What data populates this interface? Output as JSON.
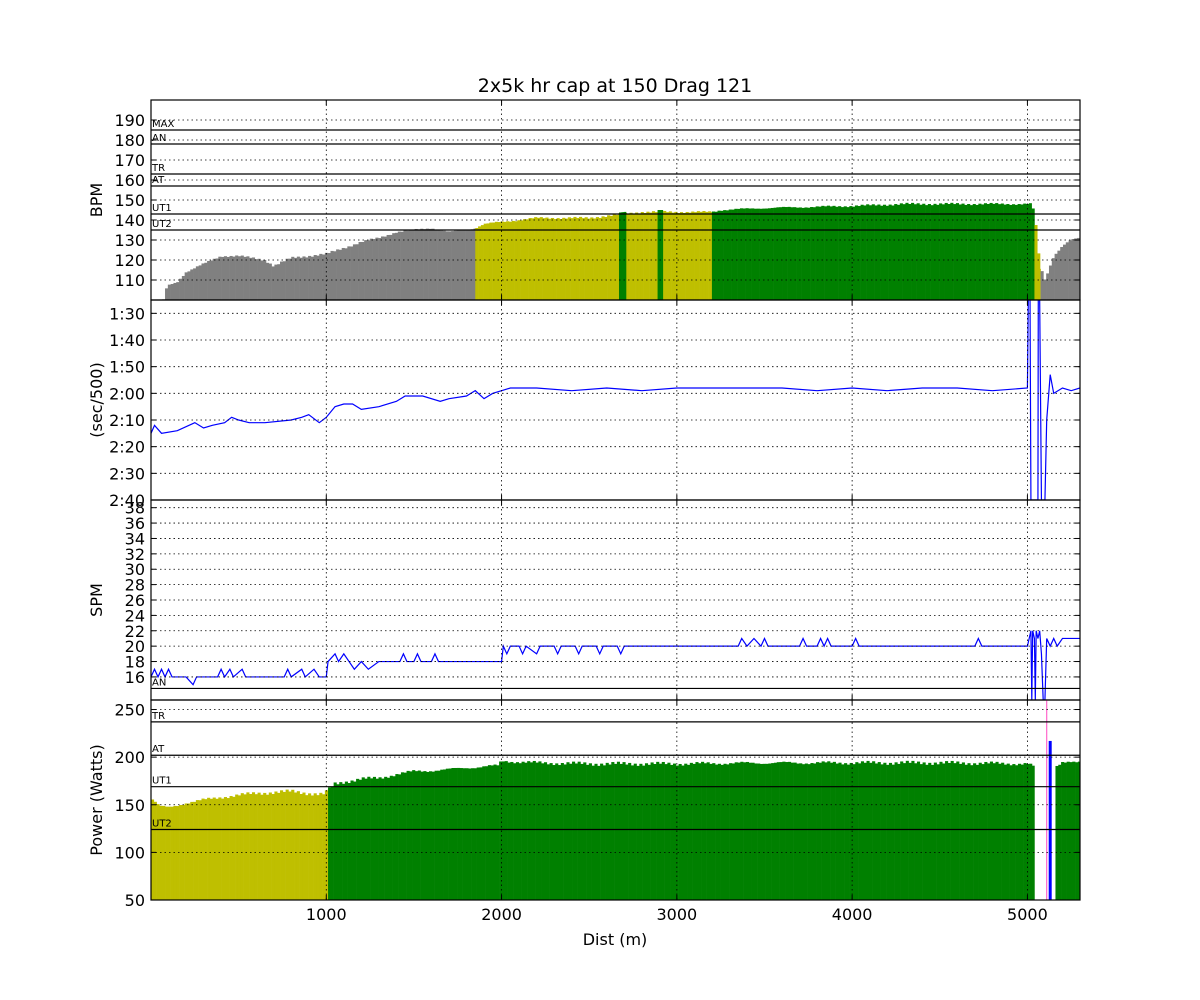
{
  "chart_data": {
    "title": "2x5k hr cap at 150 Drag 121",
    "xlabel": "Dist (m)",
    "xlim": [
      0,
      5300
    ],
    "xticks": [
      1000,
      2000,
      3000,
      4000,
      5000
    ],
    "colors": {
      "gray": "#808080",
      "yellow": "#bfbf00",
      "green": "#008000",
      "line": "#0000ff",
      "pink": "#ff66cc"
    },
    "panels": [
      {
        "id": "hr",
        "type": "bar",
        "ylabel": "BPM",
        "ylim": [
          100,
          200
        ],
        "yticks": [
          110,
          120,
          130,
          140,
          150,
          160,
          170,
          180,
          190
        ],
        "zones": [
          {
            "label": "MAX",
            "y": 185
          },
          {
            "label": "AN",
            "y": 178
          },
          {
            "label": "TR",
            "y": 163
          },
          {
            "label": "AT",
            "y": 157
          },
          {
            "label": "UT1",
            "y": 143
          },
          {
            "label": "UT2",
            "y": 135
          }
        ],
        "keypoints": [
          [
            0,
            100
          ],
          [
            80,
            100
          ],
          [
            90,
            107
          ],
          [
            150,
            109
          ],
          [
            200,
            114
          ],
          [
            300,
            118
          ],
          [
            400,
            122
          ],
          [
            500,
            122
          ],
          [
            650,
            120
          ],
          [
            700,
            117
          ],
          [
            800,
            121
          ],
          [
            900,
            122
          ],
          [
            1000,
            123
          ],
          [
            1100,
            126
          ],
          [
            1200,
            129
          ],
          [
            1300,
            131
          ],
          [
            1400,
            134
          ],
          [
            1500,
            135
          ],
          [
            1600,
            136
          ],
          [
            1700,
            134
          ],
          [
            1800,
            135
          ],
          [
            1850,
            136
          ],
          [
            1900,
            138
          ],
          [
            2000,
            139
          ],
          [
            2100,
            140
          ],
          [
            2200,
            141
          ],
          [
            2500,
            141
          ],
          [
            2800,
            144
          ],
          [
            3000,
            144
          ],
          [
            3200,
            144
          ],
          [
            3250,
            145
          ],
          [
            3500,
            146
          ],
          [
            4000,
            147
          ],
          [
            4300,
            148
          ],
          [
            4600,
            148
          ],
          [
            4900,
            148
          ],
          [
            5020,
            148
          ],
          [
            5040,
            144
          ],
          [
            5070,
            118
          ],
          [
            5100,
            110
          ],
          [
            5150,
            122
          ],
          [
            5200,
            127
          ],
          [
            5250,
            130
          ],
          [
            5300,
            131
          ]
        ],
        "segments": [
          {
            "x0": 0,
            "x1": 1850,
            "color": "gray"
          },
          {
            "x0": 1850,
            "x1": 3200,
            "color": "yellow"
          },
          {
            "x0": 3200,
            "x1": 5040,
            "color": "green"
          },
          {
            "x0": 5040,
            "x1": 5075,
            "color": "yellow"
          },
          {
            "x0": 5075,
            "x1": 5300,
            "color": "gray"
          }
        ],
        "overlays": [
          {
            "x0": 2670,
            "x1": 2710,
            "color": "green"
          },
          {
            "x0": 2890,
            "x1": 2920,
            "color": "green"
          }
        ]
      },
      {
        "id": "pace",
        "type": "line",
        "ylabel": "(sec/500)",
        "ylim": [
          160,
          85
        ],
        "yticks": [
          90,
          100,
          110,
          120,
          130,
          140,
          150,
          160
        ],
        "ytick_labels": [
          "1:30",
          "1:40",
          "1:50",
          "2:00",
          "2:10",
          "2:20",
          "2:30",
          "2:40"
        ],
        "keypoints": [
          [
            0,
            135
          ],
          [
            20,
            132
          ],
          [
            60,
            135
          ],
          [
            150,
            134
          ],
          [
            250,
            131
          ],
          [
            300,
            133
          ],
          [
            350,
            132
          ],
          [
            420,
            131
          ],
          [
            460,
            129
          ],
          [
            500,
            130
          ],
          [
            560,
            131
          ],
          [
            650,
            131
          ],
          [
            800,
            130
          ],
          [
            860,
            129
          ],
          [
            900,
            128
          ],
          [
            960,
            131
          ],
          [
            1000,
            129
          ],
          [
            1050,
            125
          ],
          [
            1100,
            124
          ],
          [
            1150,
            124
          ],
          [
            1200,
            126
          ],
          [
            1300,
            125
          ],
          [
            1400,
            123
          ],
          [
            1450,
            121
          ],
          [
            1550,
            121
          ],
          [
            1650,
            123
          ],
          [
            1700,
            122
          ],
          [
            1800,
            121
          ],
          [
            1850,
            119
          ],
          [
            1900,
            122
          ],
          [
            1950,
            120
          ],
          [
            2000,
            119
          ],
          [
            2050,
            118
          ],
          [
            2200,
            118
          ],
          [
            2400,
            119
          ],
          [
            2600,
            118
          ],
          [
            2800,
            119
          ],
          [
            3000,
            118
          ],
          [
            3200,
            118
          ],
          [
            3400,
            118
          ],
          [
            3600,
            118
          ],
          [
            3800,
            119
          ],
          [
            4000,
            118
          ],
          [
            4200,
            119
          ],
          [
            4400,
            118
          ],
          [
            4600,
            118
          ],
          [
            4800,
            119
          ],
          [
            5000,
            118
          ],
          [
            5005,
            85
          ],
          [
            5015,
            85
          ],
          [
            5020,
            160
          ],
          [
            5060,
            160
          ],
          [
            5062,
            85
          ],
          [
            5070,
            85
          ],
          [
            5080,
            160
          ],
          [
            5100,
            160
          ],
          [
            5110,
            130
          ],
          [
            5130,
            113
          ],
          [
            5150,
            120
          ],
          [
            5200,
            118
          ],
          [
            5250,
            119
          ],
          [
            5300,
            118
          ]
        ]
      },
      {
        "id": "spm",
        "type": "line",
        "ylabel": "SPM",
        "ylim": [
          13,
          39
        ],
        "yticks": [
          16,
          18,
          20,
          22,
          24,
          26,
          28,
          30,
          32,
          34,
          36,
          38
        ],
        "zones": [
          {
            "label": "AN",
            "y": 14.5
          }
        ],
        "keypoints": [
          [
            0,
            16
          ],
          [
            20,
            17
          ],
          [
            40,
            16
          ],
          [
            60,
            17
          ],
          [
            80,
            16
          ],
          [
            100,
            17
          ],
          [
            120,
            16
          ],
          [
            200,
            16
          ],
          [
            240,
            15
          ],
          [
            260,
            16
          ],
          [
            380,
            16
          ],
          [
            400,
            17
          ],
          [
            420,
            16
          ],
          [
            450,
            17
          ],
          [
            470,
            16
          ],
          [
            520,
            17
          ],
          [
            540,
            16
          ],
          [
            760,
            16
          ],
          [
            780,
            17
          ],
          [
            800,
            16
          ],
          [
            860,
            17
          ],
          [
            880,
            16
          ],
          [
            930,
            17
          ],
          [
            960,
            16
          ],
          [
            1000,
            16
          ],
          [
            1010,
            18
          ],
          [
            1050,
            19
          ],
          [
            1070,
            18
          ],
          [
            1100,
            19
          ],
          [
            1130,
            18
          ],
          [
            1160,
            17
          ],
          [
            1200,
            18
          ],
          [
            1240,
            17
          ],
          [
            1300,
            18
          ],
          [
            1420,
            18
          ],
          [
            1440,
            19
          ],
          [
            1460,
            18
          ],
          [
            1500,
            18
          ],
          [
            1520,
            19
          ],
          [
            1540,
            18
          ],
          [
            1600,
            18
          ],
          [
            1620,
            19
          ],
          [
            1640,
            18
          ],
          [
            2000,
            18
          ],
          [
            2010,
            20
          ],
          [
            2030,
            19
          ],
          [
            2050,
            20
          ],
          [
            2100,
            20
          ],
          [
            2120,
            19
          ],
          [
            2140,
            20
          ],
          [
            2200,
            19
          ],
          [
            2220,
            20
          ],
          [
            2300,
            20
          ],
          [
            2320,
            19
          ],
          [
            2340,
            20
          ],
          [
            2420,
            20
          ],
          [
            2440,
            19
          ],
          [
            2460,
            20
          ],
          [
            2540,
            20
          ],
          [
            2560,
            19
          ],
          [
            2580,
            20
          ],
          [
            2660,
            20
          ],
          [
            2680,
            19
          ],
          [
            2700,
            20
          ],
          [
            3350,
            20
          ],
          [
            3370,
            21
          ],
          [
            3400,
            20
          ],
          [
            3440,
            21
          ],
          [
            3480,
            20
          ],
          [
            3500,
            21
          ],
          [
            3520,
            20
          ],
          [
            3700,
            20
          ],
          [
            3720,
            21
          ],
          [
            3740,
            20
          ],
          [
            3800,
            20
          ],
          [
            3820,
            21
          ],
          [
            3840,
            20
          ],
          [
            3860,
            21
          ],
          [
            3880,
            20
          ],
          [
            4000,
            20
          ],
          [
            4020,
            21
          ],
          [
            4040,
            20
          ],
          [
            4700,
            20
          ],
          [
            4720,
            21
          ],
          [
            4740,
            20
          ],
          [
            5000,
            20
          ],
          [
            5010,
            21
          ],
          [
            5020,
            22
          ],
          [
            5025,
            13
          ],
          [
            5030,
            22
          ],
          [
            5040,
            21
          ],
          [
            5045,
            13
          ],
          [
            5050,
            22
          ],
          [
            5060,
            21
          ],
          [
            5070,
            22
          ],
          [
            5080,
            19
          ],
          [
            5090,
            13
          ],
          [
            5100,
            13
          ],
          [
            5110,
            21
          ],
          [
            5130,
            20
          ],
          [
            5150,
            21
          ],
          [
            5170,
            20
          ],
          [
            5200,
            21
          ],
          [
            5300,
            21
          ]
        ]
      },
      {
        "id": "power",
        "type": "bar",
        "ylabel": "Power (Watts)",
        "ylim": [
          50,
          260
        ],
        "yticks": [
          50,
          100,
          150,
          200,
          250
        ],
        "zones": [
          {
            "label": "TR",
            "y": 237
          },
          {
            "label": "AT",
            "y": 202
          },
          {
            "label": "UT1",
            "y": 169
          },
          {
            "label": "UT2",
            "y": 124
          }
        ],
        "keypoints": [
          [
            0,
            157
          ],
          [
            50,
            148
          ],
          [
            100,
            147
          ],
          [
            200,
            152
          ],
          [
            300,
            155
          ],
          [
            400,
            158
          ],
          [
            500,
            160
          ],
          [
            600,
            162
          ],
          [
            700,
            163
          ],
          [
            800,
            164
          ],
          [
            900,
            162
          ],
          [
            980,
            161
          ],
          [
            1000,
            163
          ],
          [
            1050,
            172
          ],
          [
            1100,
            174
          ],
          [
            1200,
            177
          ],
          [
            1300,
            178
          ],
          [
            1400,
            182
          ],
          [
            1500,
            185
          ],
          [
            1600,
            186
          ],
          [
            1700,
            187
          ],
          [
            1800,
            189
          ],
          [
            1900,
            190
          ],
          [
            1980,
            191
          ],
          [
            2000,
            196
          ],
          [
            2200,
            194
          ],
          [
            2500,
            193
          ],
          [
            3000,
            193
          ],
          [
            3500,
            194
          ],
          [
            4000,
            194
          ],
          [
            4500,
            194
          ],
          [
            5000,
            193
          ],
          [
            5040,
            190
          ]
        ],
        "segments": [
          {
            "x0": 0,
            "x1": 1010,
            "color": "yellow"
          },
          {
            "x0": 1010,
            "x1": 5040,
            "color": "green"
          },
          {
            "x0": 5160,
            "x1": 5300,
            "color": "green"
          }
        ],
        "tail": [
          [
            5160,
            188
          ],
          [
            5200,
            194
          ],
          [
            5250,
            196
          ],
          [
            5300,
            196
          ]
        ],
        "spike": {
          "x": 5130,
          "y": 217
        },
        "pink_x": 5110
      }
    ]
  }
}
